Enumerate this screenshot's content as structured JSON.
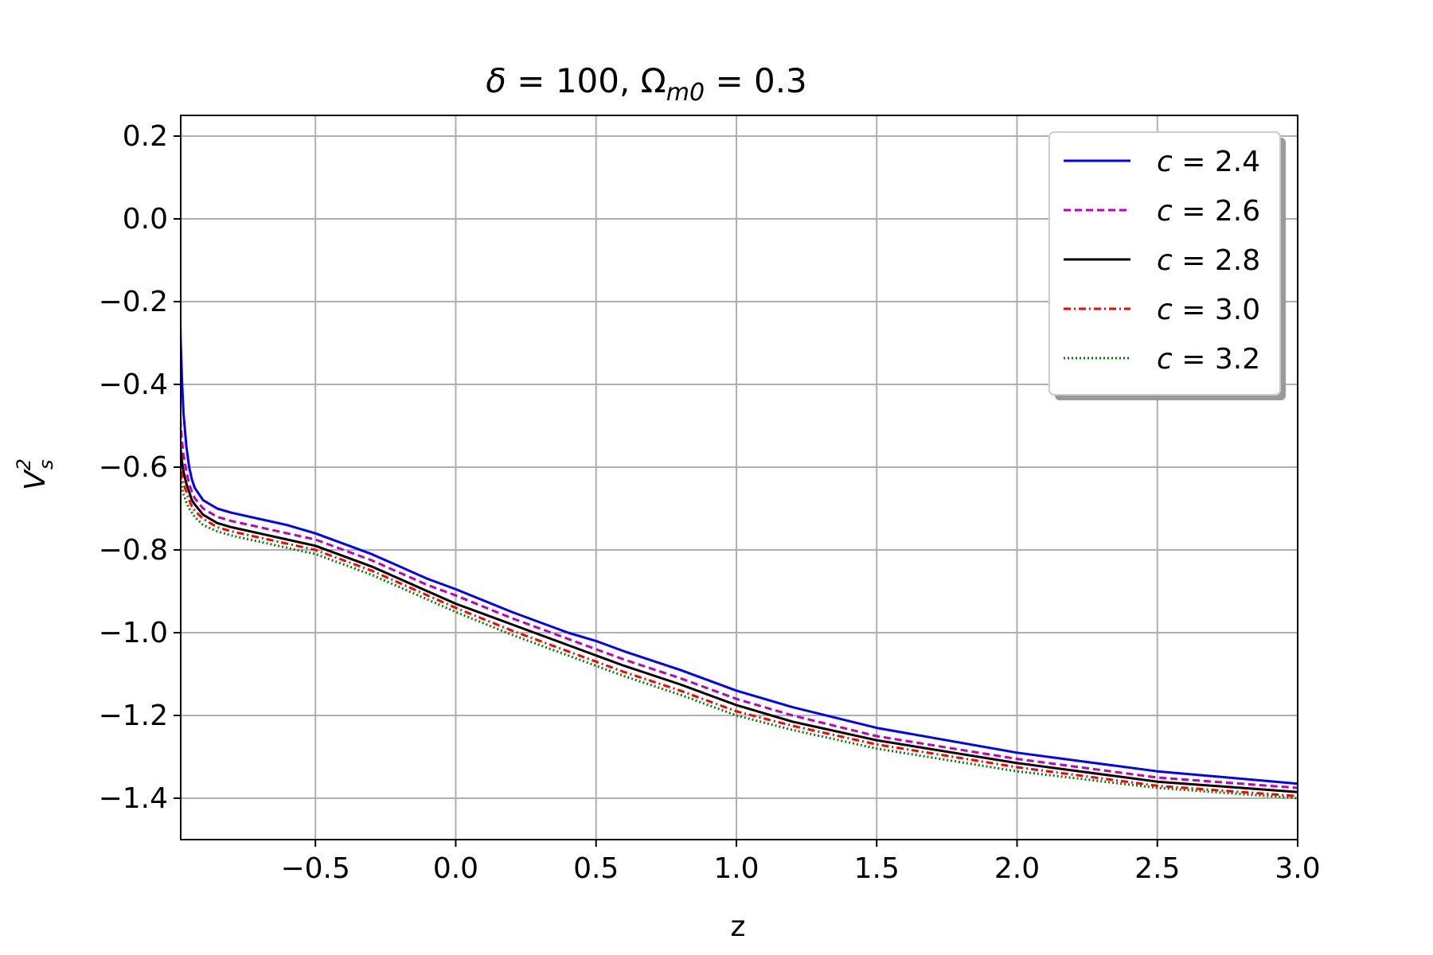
{
  "chart_data": {
    "type": "line",
    "title": {
      "prefix": "δ",
      "mid": " = 100, Ω",
      "sub": "m0",
      "suffix": " = 0.3"
    },
    "xlabel": "z",
    "ylabel": {
      "base": "V",
      "sup": "2",
      "sub": "s"
    },
    "xlim": [
      -0.98,
      3.0
    ],
    "ylim": [
      -1.5,
      0.25
    ],
    "xticks": [
      -0.5,
      0.0,
      0.5,
      1.0,
      1.5,
      2.0,
      2.5,
      3.0
    ],
    "xtick_labels": [
      "−0.5",
      "0.0",
      "0.5",
      "1.0",
      "1.5",
      "2.0",
      "2.5",
      "3.0"
    ],
    "yticks": [
      0.2,
      0.0,
      -0.2,
      -0.4,
      -0.6,
      -0.8,
      -1.0,
      -1.2,
      -1.4
    ],
    "ytick_labels": [
      "0.2",
      "0.0",
      "−0.2",
      "−0.4",
      "−0.6",
      "−0.8",
      "−1.0",
      "−1.2",
      "−1.4"
    ],
    "grid": true,
    "legend_position": "top-right",
    "x": [
      -0.99,
      -0.985,
      -0.98,
      -0.975,
      -0.97,
      -0.96,
      -0.95,
      -0.94,
      -0.93,
      -0.9,
      -0.85,
      -0.8,
      -0.7,
      -0.6,
      -0.5,
      -0.4,
      -0.3,
      -0.2,
      -0.1,
      0.0,
      0.2,
      0.4,
      0.5,
      0.6,
      0.8,
      1.0,
      1.2,
      1.5,
      2.0,
      2.5,
      3.0
    ],
    "series": [
      {
        "label": "c = 2.4",
        "name": "c",
        "value": "2.4",
        "color": "#0000ff",
        "dash": "",
        "values": [
          0.25,
          -0.1,
          -0.3,
          -0.4,
          -0.47,
          -0.55,
          -0.6,
          -0.63,
          -0.65,
          -0.68,
          -0.7,
          -0.71,
          -0.725,
          -0.74,
          -0.76,
          -0.785,
          -0.81,
          -0.84,
          -0.87,
          -0.895,
          -0.95,
          -1.0,
          -1.02,
          -1.045,
          -1.09,
          -1.14,
          -1.18,
          -1.23,
          -1.29,
          -1.335,
          -1.365
        ]
      },
      {
        "label": "c = 2.6",
        "name": "c",
        "value": "2.6",
        "color": "#bf00bf",
        "dash": "9,5",
        "values": [
          -0.35,
          -0.44,
          -0.5,
          -0.54,
          -0.57,
          -0.61,
          -0.64,
          -0.66,
          -0.675,
          -0.7,
          -0.72,
          -0.73,
          -0.745,
          -0.76,
          -0.775,
          -0.8,
          -0.825,
          -0.855,
          -0.885,
          -0.91,
          -0.965,
          -1.015,
          -1.04,
          -1.065,
          -1.11,
          -1.16,
          -1.2,
          -1.25,
          -1.305,
          -1.35,
          -1.375
        ]
      },
      {
        "label": "c = 2.8",
        "name": "c",
        "value": "2.8",
        "color": "#000000",
        "dash": "",
        "values": [
          -0.45,
          -0.52,
          -0.56,
          -0.59,
          -0.61,
          -0.64,
          -0.66,
          -0.68,
          -0.69,
          -0.715,
          -0.735,
          -0.745,
          -0.76,
          -0.775,
          -0.79,
          -0.815,
          -0.84,
          -0.87,
          -0.9,
          -0.93,
          -0.98,
          -1.03,
          -1.055,
          -1.08,
          -1.125,
          -1.175,
          -1.215,
          -1.26,
          -1.315,
          -1.36,
          -1.385
        ]
      },
      {
        "label": "c = 3.0",
        "name": "c",
        "value": "3.0",
        "color": "#ff0000",
        "dash": "9,4,2,4",
        "values": [
          -0.5,
          -0.56,
          -0.6,
          -0.62,
          -0.64,
          -0.66,
          -0.68,
          -0.695,
          -0.705,
          -0.725,
          -0.745,
          -0.755,
          -0.77,
          -0.785,
          -0.8,
          -0.825,
          -0.85,
          -0.88,
          -0.91,
          -0.94,
          -0.995,
          -1.045,
          -1.07,
          -1.095,
          -1.14,
          -1.19,
          -1.225,
          -1.27,
          -1.325,
          -1.37,
          -1.395
        ]
      },
      {
        "label": "c = 3.2",
        "name": "c",
        "value": "3.2",
        "color": "#008000",
        "dash": "2,3",
        "values": [
          -0.55,
          -0.6,
          -0.63,
          -0.65,
          -0.665,
          -0.685,
          -0.7,
          -0.71,
          -0.72,
          -0.74,
          -0.755,
          -0.765,
          -0.78,
          -0.795,
          -0.81,
          -0.835,
          -0.86,
          -0.89,
          -0.92,
          -0.95,
          -1.005,
          -1.055,
          -1.08,
          -1.105,
          -1.15,
          -1.2,
          -1.235,
          -1.28,
          -1.335,
          -1.375,
          -1.4
        ]
      }
    ]
  }
}
